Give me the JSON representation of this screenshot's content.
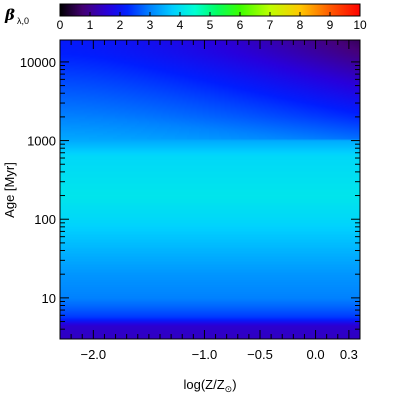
{
  "chart_data": {
    "type": "heatmap",
    "title": "",
    "xlabel": {
      "main": "log(Z/Z",
      "sub": "⊙",
      "close": ")"
    },
    "ylabel": {
      "main": "Age ",
      "bracketed": "[Myr]"
    },
    "x_scale": "linear",
    "y_scale": "log",
    "xlim": [
      -2.3,
      0.4
    ],
    "ylim": [
      3,
      19000
    ],
    "x_ticks": [
      {
        "value": -2.0,
        "label": "−2.0"
      },
      {
        "value": -1.0,
        "label": "−1.0"
      },
      {
        "value": -0.5,
        "label": "−0.5"
      },
      {
        "value": 0.0,
        "label": "0.0"
      },
      {
        "value": 0.3,
        "label": "0.3"
      }
    ],
    "y_ticks": [
      {
        "value": 10,
        "label": "10"
      },
      {
        "value": 100,
        "label": "100"
      },
      {
        "value": 1000,
        "label": "1000"
      },
      {
        "value": 10000,
        "label": "10000"
      }
    ],
    "colorbar": {
      "label_main": "β",
      "label_sub": "λ,0",
      "min": 0,
      "max": 10,
      "tick_labels": [
        "0",
        "1",
        "2",
        "3",
        "4",
        "5",
        "6",
        "7",
        "8",
        "9",
        "10"
      ],
      "placement": "top",
      "colormap": "rainbow"
    },
    "grid": false,
    "z_profile_log_age": [
      {
        "log_age": 0.48,
        "z": 1.4
      },
      {
        "log_age": 0.65,
        "z": 1.5
      },
      {
        "log_age": 0.75,
        "z": 2.4
      },
      {
        "log_age": 0.9,
        "z": 2.8
      },
      {
        "log_age": 1.0,
        "z": 3.0
      },
      {
        "log_age": 1.3,
        "z": 3.2
      },
      {
        "log_age": 1.6,
        "z": 3.5
      },
      {
        "log_age": 2.0,
        "z": 3.9
      },
      {
        "log_age": 2.3,
        "z": 4.1
      },
      {
        "log_age": 2.55,
        "z": 4.0
      },
      {
        "log_age": 2.8,
        "z": 3.9
      },
      {
        "log_age": 3.0,
        "z": 3.4
      },
      {
        "log_age": 3.3,
        "z": 3.0
      },
      {
        "log_age": 3.6,
        "z": 2.7
      },
      {
        "log_age": 3.9,
        "z": 2.4
      },
      {
        "log_age": 4.1,
        "z": 2.2
      },
      {
        "log_age": 4.28,
        "z": 2.1
      }
    ],
    "metallicity_effect": [
      {
        "log_age": 3.0,
        "dz_at_max_z": -0.5
      },
      {
        "log_age": 3.4,
        "dz_at_max_z": -0.8
      },
      {
        "log_age": 3.8,
        "dz_at_max_z": -1.1
      },
      {
        "log_age": 4.28,
        "dz_at_max_z": -1.5
      }
    ]
  }
}
